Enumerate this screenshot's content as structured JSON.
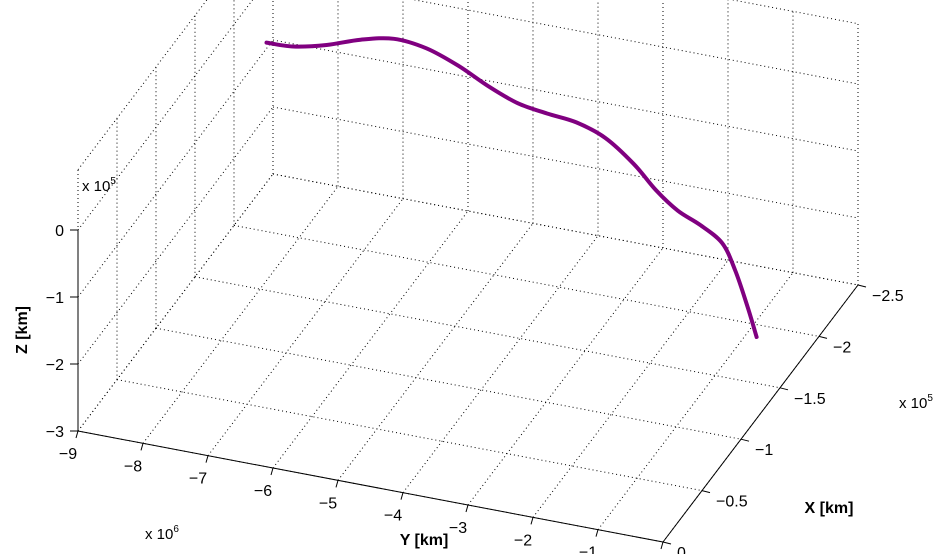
{
  "chart_data": {
    "type": "line3d",
    "x_axis": {
      "label": "X [km]",
      "ticks": [
        -2.5,
        -2,
        -1.5,
        -1,
        -0.5,
        0
      ],
      "tick_labels": [
        "−2.5",
        "−2",
        "−1.5",
        "−1",
        "−0.5",
        "0"
      ],
      "range": [
        -2.5,
        0
      ],
      "multiplier_base": "x 10",
      "multiplier_exp": "5"
    },
    "y_axis": {
      "label": "Y [km]",
      "ticks": [
        -9,
        -8,
        -7,
        -6,
        -5,
        -4,
        -3,
        -2,
        -1,
        0
      ],
      "tick_labels": [
        "−9",
        "−8",
        "−7",
        "−6",
        "−5",
        "−4",
        "−3",
        "−2",
        "−1",
        "0"
      ],
      "range": [
        -9,
        0
      ],
      "multiplier_base": "x 10",
      "multiplier_exp": "6"
    },
    "z_axis": {
      "label": "Z [km]",
      "ticks": [
        -3,
        -2,
        -1,
        0
      ],
      "tick_labels": [
        "−3",
        "−2",
        "−1",
        "0"
      ],
      "range": [
        -3,
        0
      ],
      "multiplier_base": "x 10",
      "multiplier_exp": "5"
    },
    "grid": true,
    "series": [
      {
        "color": "#800080",
        "points": [
          {
            "x": -2.0,
            "y": -8.5,
            "z": -0.18
          },
          {
            "x": -2.01,
            "y": -8.1,
            "z": -0.18
          },
          {
            "x": -2.02,
            "y": -7.6,
            "z": -0.08
          },
          {
            "x": -2.04,
            "y": -7.1,
            "z": 0.06
          },
          {
            "x": -2.05,
            "y": -6.6,
            "z": 0.15
          },
          {
            "x": -2.05,
            "y": -6.1,
            "z": 0.1
          },
          {
            "x": -2.04,
            "y": -5.6,
            "z": -0.05
          },
          {
            "x": -2.01,
            "y": -5.1,
            "z": -0.22
          },
          {
            "x": -1.97,
            "y": -4.6,
            "z": -0.32
          },
          {
            "x": -1.93,
            "y": -4.1,
            "z": -0.32
          },
          {
            "x": -1.89,
            "y": -3.6,
            "z": -0.3
          },
          {
            "x": -1.84,
            "y": -3.1,
            "z": -0.36
          },
          {
            "x": -1.79,
            "y": -2.6,
            "z": -0.58
          },
          {
            "x": -1.74,
            "y": -2.2,
            "z": -0.82
          },
          {
            "x": -1.69,
            "y": -1.8,
            "z": -0.98
          },
          {
            "x": -1.64,
            "y": -1.4,
            "z": -1.04
          },
          {
            "x": -1.59,
            "y": -1.0,
            "z": -1.16
          },
          {
            "x": -1.55,
            "y": -0.75,
            "z": -1.46
          },
          {
            "x": -1.5,
            "y": -0.5,
            "z": -1.88
          },
          {
            "x": -1.45,
            "y": -0.3,
            "z": -2.22
          }
        ]
      }
    ]
  }
}
